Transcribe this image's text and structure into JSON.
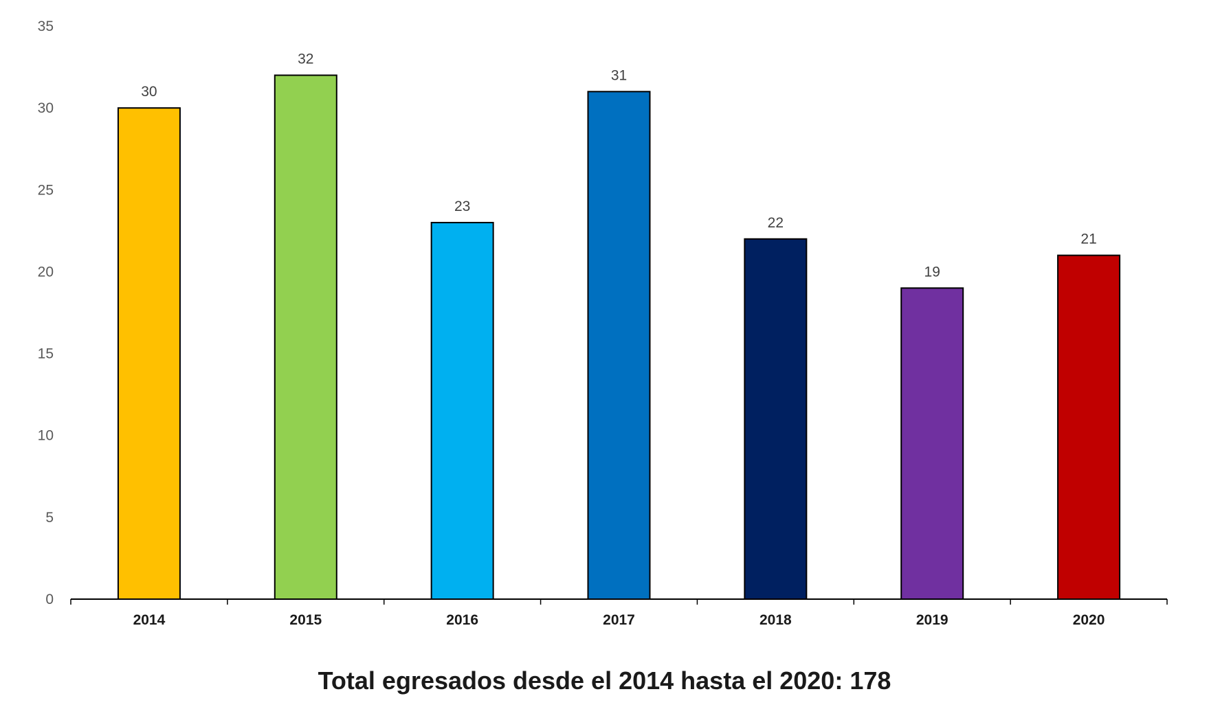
{
  "chart_data": {
    "type": "bar",
    "title": "Total egresados desde el 2014 hasta el 2020: 178",
    "xlabel": "",
    "ylabel": "",
    "categories": [
      "2014",
      "2015",
      "2016",
      "2017",
      "2018",
      "2019",
      "2020"
    ],
    "values": [
      30,
      32,
      23,
      31,
      22,
      19,
      21
    ],
    "data_labels": [
      "30",
      "32",
      "23",
      "31",
      "22",
      "19",
      "21"
    ],
    "colors": [
      "#FFC000",
      "#92D050",
      "#00B0F0",
      "#0070C0",
      "#002060",
      "#7030A0",
      "#C00000"
    ],
    "ylim": [
      0,
      35
    ],
    "yticks": [
      0,
      5,
      10,
      15,
      20,
      25,
      30,
      35
    ],
    "grid": false,
    "legend": "none"
  }
}
